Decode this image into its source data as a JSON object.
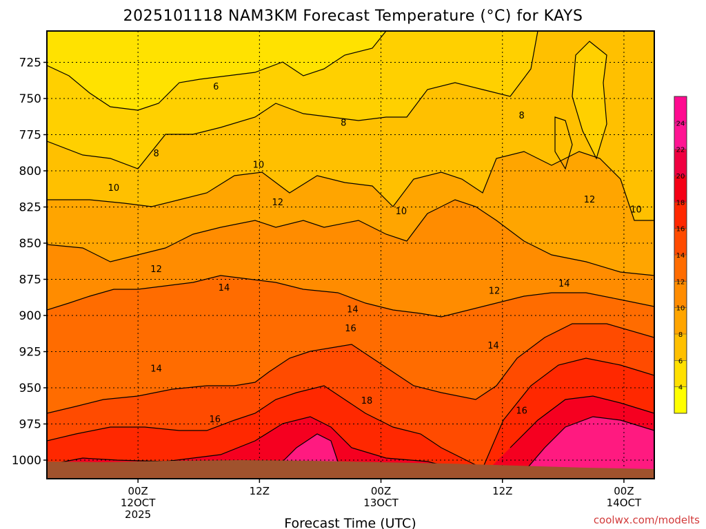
{
  "chart_data": {
    "type": "heatmap",
    "title": "2025101118 NAM3KM Forecast Temperature (°C) for KAYS",
    "xlabel": "Forecast Time (UTC)",
    "ylabel": "",
    "y_scale": "pressure (inverted)",
    "y_ticks": [
      725,
      750,
      775,
      800,
      825,
      850,
      875,
      900,
      925,
      950,
      975,
      1000
    ],
    "ylim": [
      1000,
      712
    ],
    "xlim_hours": [
      -9,
      51
    ],
    "x_ticks": [
      {
        "hour": 0,
        "label": "00Z",
        "date": "12OCT",
        "year": "2025"
      },
      {
        "hour": 12,
        "label": "12Z",
        "date": "",
        "year": ""
      },
      {
        "hour": 24,
        "label": "00Z",
        "date": "13OCT",
        "year": ""
      },
      {
        "hour": 36,
        "label": "12Z",
        "date": "",
        "year": ""
      },
      {
        "hour": 48,
        "label": "00Z",
        "date": "14OCT",
        "year": ""
      }
    ],
    "colorbar": {
      "levels": [
        4,
        6,
        8,
        10,
        12,
        14,
        16,
        18,
        20,
        22,
        24
      ],
      "colors": [
        "#ffff00",
        "#ffe000",
        "#ffc000",
        "#ffa500",
        "#ff8c00",
        "#ff6c00",
        "#ff4b00",
        "#ff2800",
        "#f50015",
        "#f00040",
        "#ff1493",
        "#ff0a90"
      ]
    },
    "contour_labels": [
      {
        "value": "6",
        "hour": 7.7,
        "p": 742
      },
      {
        "value": "8",
        "hour": 1.8,
        "p": 788
      },
      {
        "value": "8",
        "hour": 20.3,
        "p": 767
      },
      {
        "value": "8",
        "hour": 37.9,
        "p": 762
      },
      {
        "value": "10",
        "hour": -2.4,
        "p": 812
      },
      {
        "value": "10",
        "hour": 11.9,
        "p": 796
      },
      {
        "value": "10",
        "hour": 26.0,
        "p": 828
      },
      {
        "value": "10",
        "hour": 49.2,
        "p": 827
      },
      {
        "value": "12",
        "hour": 13.8,
        "p": 822
      },
      {
        "value": "12",
        "hour": 1.8,
        "p": 868
      },
      {
        "value": "12",
        "hour": 35.2,
        "p": 883
      },
      {
        "value": "12",
        "hour": 44.6,
        "p": 820
      },
      {
        "value": "14",
        "hour": 8.5,
        "p": 881
      },
      {
        "value": "14",
        "hour": 21.2,
        "p": 896
      },
      {
        "value": "14",
        "hour": 1.8,
        "p": 937
      },
      {
        "value": "14",
        "hour": 35.1,
        "p": 921
      },
      {
        "value": "14",
        "hour": 42.1,
        "p": 878
      },
      {
        "value": "16",
        "hour": 21.0,
        "p": 909
      },
      {
        "value": "16",
        "hour": 7.6,
        "p": 972
      },
      {
        "value": "16",
        "hour": 37.9,
        "p": 966
      },
      {
        "value": "18",
        "hour": 22.6,
        "p": 959
      }
    ],
    "annotation": "coolwx.com/modelts",
    "grid": true
  }
}
